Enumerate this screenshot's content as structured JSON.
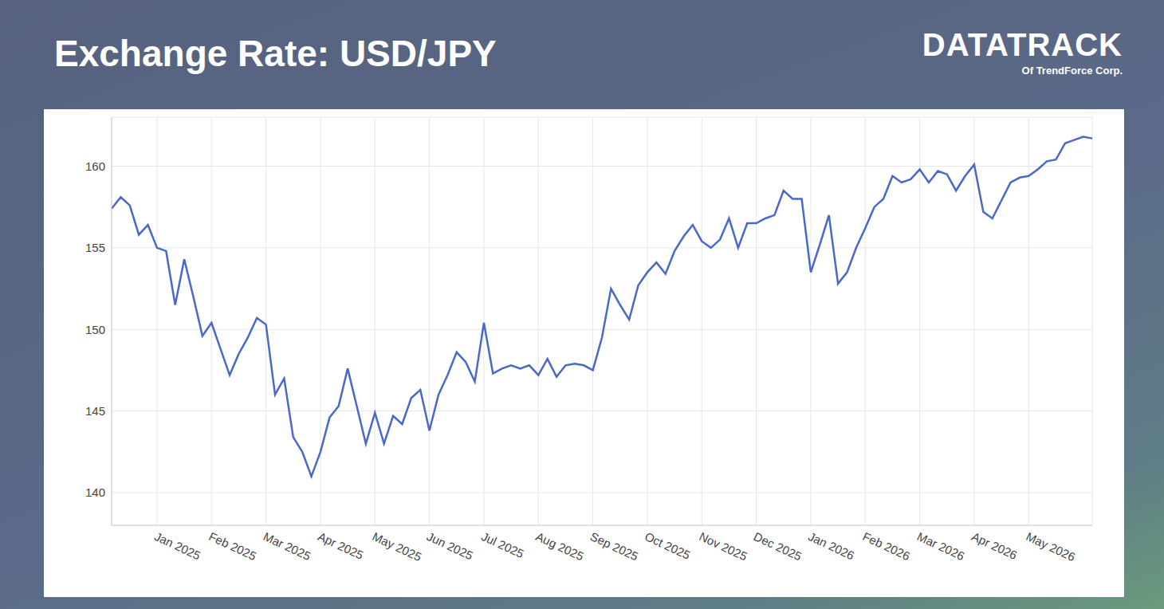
{
  "header": {
    "logo": "DATATRACK",
    "logo_sub": "Of TrendForce Corp."
  },
  "chart_data": {
    "type": "line",
    "title": "Exchange Rate: USD/JPY",
    "categories": [
      null,
      null,
      null,
      null,
      null,
      "Jan 2025",
      null,
      null,
      null,
      null,
      null,
      "Feb 2025",
      null,
      null,
      null,
      null,
      null,
      "Mar 2025",
      null,
      null,
      null,
      null,
      null,
      "Apr 2025",
      null,
      null,
      null,
      null,
      null,
      "May 2025",
      null,
      null,
      null,
      null,
      null,
      "Jun 2025",
      null,
      null,
      null,
      null,
      null,
      "Jul 2025",
      null,
      null,
      null,
      null,
      null,
      "Aug 2025",
      null,
      null,
      null,
      null,
      null,
      "Sep 2025",
      null,
      null,
      null,
      null,
      null,
      "Oct 2025",
      null,
      null,
      null,
      null,
      null,
      "Nov 2025",
      null,
      null,
      null,
      null,
      null,
      "Dec 2025",
      null,
      null,
      null,
      null,
      null,
      "Jan 2026",
      null,
      null,
      null,
      null,
      null,
      "Feb 2026",
      null,
      null,
      null,
      null,
      null,
      "Mar 2026",
      null,
      null,
      null,
      null,
      null,
      "Apr 2026",
      null,
      null,
      null,
      null,
      null,
      "May 2026",
      null,
      null,
      null,
      null,
      null,
      null,
      null
    ],
    "values": [
      157.4,
      158.1,
      157.6,
      155.8,
      156.4,
      155.0,
      154.8,
      151.5,
      154.3,
      152.0,
      149.6,
      150.4,
      148.8,
      147.2,
      148.5,
      149.5,
      150.7,
      150.3,
      146.0,
      147.0,
      143.4,
      142.5,
      141.0,
      142.5,
      144.6,
      145.3,
      147.6,
      145.3,
      143.0,
      144.9,
      143.0,
      144.7,
      144.2,
      145.8,
      146.3,
      143.8,
      146.0,
      147.2,
      148.6,
      148.0,
      146.8,
      150.4,
      147.3,
      147.6,
      147.8,
      147.6,
      147.8,
      147.2,
      148.2,
      147.1,
      147.8,
      147.9,
      147.8,
      147.5,
      149.5,
      152.5,
      151.5,
      150.6,
      152.7,
      153.5,
      154.1,
      153.4,
      154.8,
      155.7,
      156.4,
      155.4,
      155.0,
      155.5,
      156.8,
      155.0,
      156.5,
      156.5,
      156.8,
      157.0,
      158.5,
      158.0,
      158.0,
      153.5,
      155.2,
      157.0,
      152.8,
      153.5,
      155.0,
      156.2,
      157.5,
      158.0,
      159.4,
      159.0,
      159.2,
      159.8,
      159.0,
      159.7,
      159.5,
      158.5,
      159.4,
      160.1,
      157.2,
      156.8,
      157.9,
      159.0,
      159.3,
      159.4,
      159.8,
      160.3,
      160.4,
      161.4,
      161.6,
      161.8,
      161.7
    ],
    "color": "#4a68cc",
    "ylim": [
      138,
      163
    ],
    "yticks": [
      140,
      145,
      150,
      155,
      160
    ],
    "grid": true
  }
}
